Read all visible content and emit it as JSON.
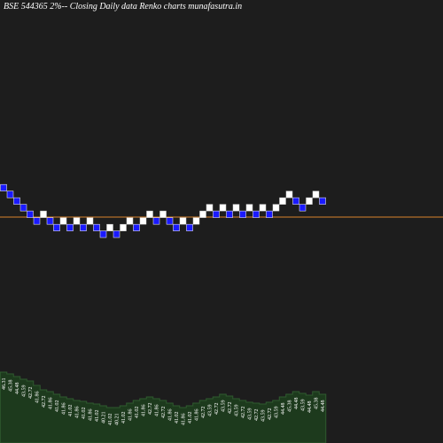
{
  "chart_data": {
    "type": "renko",
    "title": "BSE 544365 2%-- Closing Daily data Renko charts munafasutra.in",
    "log_scale": true,
    "ylim": [
      21.3,
      82.0
    ],
    "up_color": "#ffffff",
    "down_color": "#1a1aff",
    "reference_line": 42.36,
    "reference_color": "#d9822b",
    "volume_color": "#1d3a1d",
    "volume_edge_color": "#2f5a2f",
    "volume_lim": [
      0,
      100
    ],
    "bricks": [
      {
        "value": 46.31,
        "direction": "down"
      },
      {
        "value": 45.38,
        "direction": "down"
      },
      {
        "value": 44.48,
        "direction": "down"
      },
      {
        "value": 43.59,
        "direction": "down"
      },
      {
        "value": 42.72,
        "direction": "down"
      },
      {
        "value": 41.86,
        "direction": "down"
      },
      {
        "value": 42.72,
        "direction": "up"
      },
      {
        "value": 41.86,
        "direction": "down"
      },
      {
        "value": 41.02,
        "direction": "down"
      },
      {
        "value": 41.86,
        "direction": "up"
      },
      {
        "value": 41.02,
        "direction": "down"
      },
      {
        "value": 41.86,
        "direction": "up"
      },
      {
        "value": 41.02,
        "direction": "down"
      },
      {
        "value": 41.86,
        "direction": "up"
      },
      {
        "value": 41.02,
        "direction": "down"
      },
      {
        "value": 40.21,
        "direction": "down"
      },
      {
        "value": 41.02,
        "direction": "up"
      },
      {
        "value": 40.21,
        "direction": "down"
      },
      {
        "value": 41.02,
        "direction": "up"
      },
      {
        "value": 41.86,
        "direction": "up"
      },
      {
        "value": 41.02,
        "direction": "down"
      },
      {
        "value": 41.86,
        "direction": "up"
      },
      {
        "value": 42.72,
        "direction": "up"
      },
      {
        "value": 41.86,
        "direction": "down"
      },
      {
        "value": 42.72,
        "direction": "up"
      },
      {
        "value": 41.86,
        "direction": "down"
      },
      {
        "value": 41.02,
        "direction": "down"
      },
      {
        "value": 41.86,
        "direction": "up"
      },
      {
        "value": 41.02,
        "direction": "down"
      },
      {
        "value": 41.86,
        "direction": "up"
      },
      {
        "value": 42.72,
        "direction": "up"
      },
      {
        "value": 43.59,
        "direction": "up"
      },
      {
        "value": 42.72,
        "direction": "down"
      },
      {
        "value": 43.59,
        "direction": "up"
      },
      {
        "value": 42.72,
        "direction": "down"
      },
      {
        "value": 43.59,
        "direction": "up"
      },
      {
        "value": 42.72,
        "direction": "down"
      },
      {
        "value": 43.59,
        "direction": "up"
      },
      {
        "value": 42.72,
        "direction": "down"
      },
      {
        "value": 43.59,
        "direction": "up"
      },
      {
        "value": 42.72,
        "direction": "down"
      },
      {
        "value": 43.59,
        "direction": "up"
      },
      {
        "value": 44.48,
        "direction": "up"
      },
      {
        "value": 45.38,
        "direction": "up"
      },
      {
        "value": 44.48,
        "direction": "down"
      },
      {
        "value": 43.59,
        "direction": "down"
      },
      {
        "value": 44.48,
        "direction": "up"
      },
      {
        "value": 45.38,
        "direction": "up"
      },
      {
        "value": 44.48,
        "direction": "down"
      }
    ],
    "volumes": [
      80,
      78,
      75,
      72,
      70,
      65,
      60,
      58,
      55,
      52,
      50,
      48,
      47,
      45,
      44,
      42,
      40,
      40,
      42,
      45,
      48,
      50,
      52,
      50,
      48,
      45,
      42,
      40,
      42,
      45,
      48,
      50,
      52,
      55,
      53,
      50,
      48,
      46,
      45,
      44,
      46,
      48,
      52,
      55,
      58,
      56,
      54,
      58,
      55
    ]
  }
}
